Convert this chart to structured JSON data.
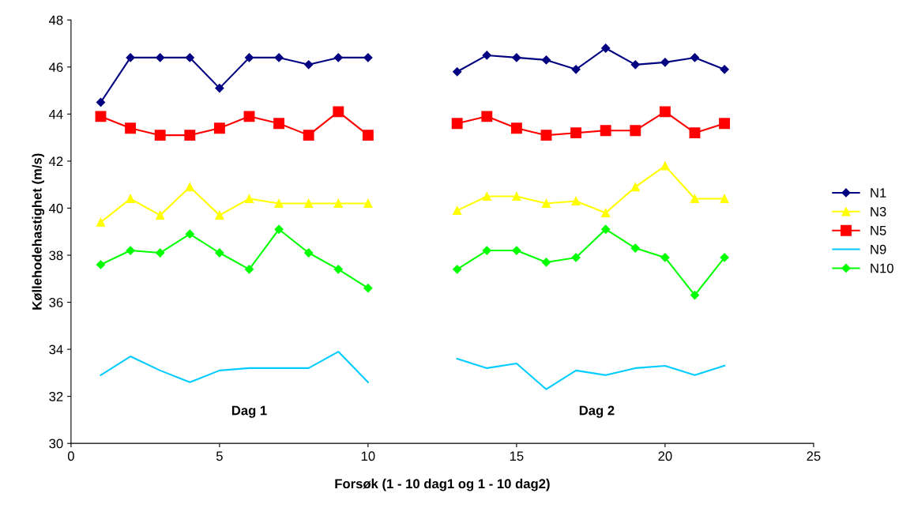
{
  "chart_data": {
    "type": "line",
    "xlabel": "Forsøk (1 - 10 dag1 og 1 - 10 dag2)",
    "ylabel": "Køllehodehastighet (m/s)",
    "x": [
      1,
      2,
      3,
      4,
      5,
      6,
      7,
      8,
      9,
      10,
      11,
      12,
      13,
      14,
      15,
      16,
      17,
      18,
      19,
      20,
      21,
      22
    ],
    "series": [
      {
        "name": "N1",
        "color": "#000080",
        "marker": "diamond",
        "values": [
          44.5,
          46.4,
          46.4,
          46.4,
          45.1,
          46.4,
          46.4,
          46.1,
          46.4,
          46.4,
          null,
          null,
          45.8,
          46.5,
          46.4,
          46.3,
          45.9,
          46.8,
          46.1,
          46.2,
          46.4,
          45.9
        ]
      },
      {
        "name": "N3",
        "color": "#ffff00",
        "marker": "triangle",
        "values": [
          39.4,
          40.4,
          39.7,
          40.9,
          39.7,
          40.4,
          40.2,
          40.2,
          40.2,
          40.2,
          null,
          null,
          39.9,
          40.5,
          40.5,
          40.2,
          40.3,
          39.8,
          40.9,
          41.8,
          40.4,
          40.4
        ]
      },
      {
        "name": "N5",
        "color": "#ff0000",
        "marker": "square",
        "values": [
          43.9,
          43.4,
          43.1,
          43.1,
          43.4,
          43.9,
          43.6,
          43.1,
          44.1,
          43.1,
          null,
          null,
          43.6,
          43.9,
          43.4,
          43.1,
          43.2,
          43.3,
          43.3,
          44.1,
          43.2,
          43.6
        ]
      },
      {
        "name": "N9",
        "color": "#00ccff",
        "marker": "none",
        "values": [
          32.9,
          33.7,
          33.1,
          32.6,
          33.1,
          33.2,
          33.2,
          33.2,
          33.9,
          32.6,
          null,
          null,
          33.6,
          33.2,
          33.4,
          32.3,
          33.1,
          32.9,
          33.2,
          33.3,
          32.9,
          33.3
        ]
      },
      {
        "name": "N10",
        "color": "#00ff00",
        "marker": "diamond",
        "values": [
          37.6,
          38.2,
          38.1,
          38.9,
          38.1,
          37.4,
          39.1,
          38.1,
          37.4,
          36.6,
          null,
          null,
          37.4,
          38.2,
          38.2,
          37.7,
          37.9,
          39.1,
          38.3,
          37.9,
          36.3,
          37.9
        ]
      }
    ],
    "annotations": [
      "Dag 1",
      "Dag 2"
    ],
    "xlim": [
      0,
      25
    ],
    "xticks": [
      0,
      5,
      10,
      15,
      20,
      25
    ],
    "ylim": [
      30,
      48
    ],
    "yticks": [
      30,
      32,
      34,
      36,
      38,
      40,
      42,
      44,
      46,
      48
    ],
    "grid": false,
    "legend": "right",
    "line_style": "solid"
  }
}
